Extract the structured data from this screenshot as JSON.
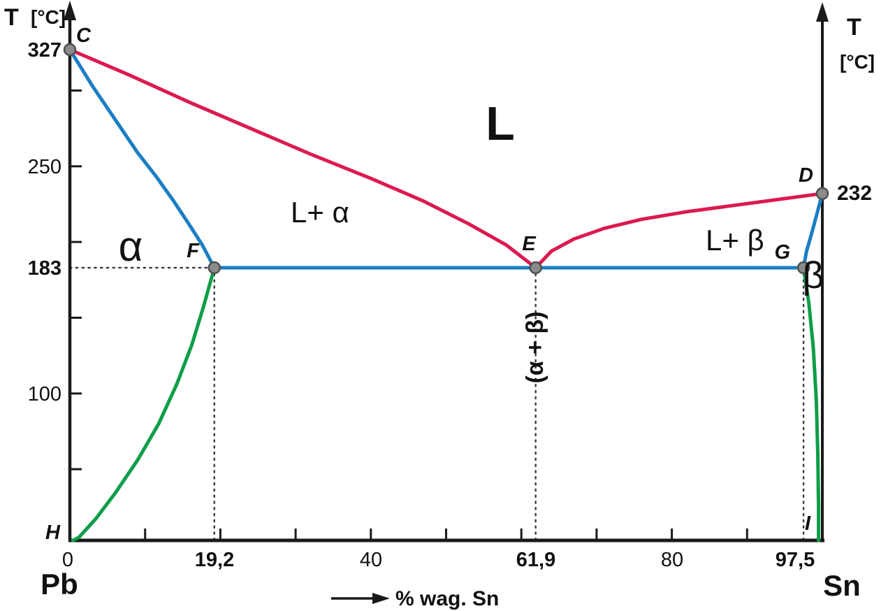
{
  "colors": {
    "liquidus": "#DC1A50",
    "solidus": "#1B7EC2",
    "solvus": "#0E9E48",
    "axis": "#1A1A1A",
    "guide": "#3A3A3A",
    "point_fill": "#8B8B8B",
    "point_stroke": "#4F4F4F",
    "background": "#FFFFFF"
  },
  "axis_titles": {
    "left_t": "T",
    "left_unit": "[°C]",
    "right_t": "T",
    "right_unit": "[°C]",
    "x_title": "% wag. Sn"
  },
  "endpoints": {
    "left": "Pb",
    "right": "Sn"
  },
  "y_labels": {
    "t327": "327",
    "t250": "250",
    "t183": "183",
    "t100": "100",
    "t232": "232"
  },
  "x_labels": {
    "p0": "0",
    "p19": "19,2",
    "p40": "40",
    "p61": "61,9",
    "p80": "80",
    "p97": "97,5"
  },
  "regions": {
    "liquid": "L",
    "liquid_alpha": "L+ α",
    "liquid_beta": "L+ β",
    "alpha": "α",
    "beta": "β",
    "alpha_beta": "(α + β)"
  },
  "point_labels": {
    "c": "C",
    "d": "D",
    "e": "E",
    "f": "F",
    "g": "G",
    "h": "H",
    "i": "I"
  },
  "chart_data": {
    "type": "line",
    "title": "Pb–Sn eutectic phase diagram",
    "xlabel": "% wag. Sn",
    "ylabel": "T [°C]",
    "xlim": [
      0,
      100
    ],
    "ylim": [
      0,
      360
    ],
    "grid": false,
    "x_tick_labels": [
      {
        "value": 0,
        "text": "0",
        "bold": false
      },
      {
        "value": 19.2,
        "text": "19,2",
        "bold": true
      },
      {
        "value": 40,
        "text": "40",
        "bold": false
      },
      {
        "value": 61.9,
        "text": "61,9",
        "bold": true
      },
      {
        "value": 80,
        "text": "80",
        "bold": false
      },
      {
        "value": 97.5,
        "text": "97,5",
        "bold": true
      }
    ],
    "y_tick_labels_left": [
      {
        "value": 327,
        "text": "327",
        "bold": true
      },
      {
        "value": 250,
        "text": "250",
        "bold": false
      },
      {
        "value": 183,
        "text": "183",
        "bold": true
      },
      {
        "value": 100,
        "text": "100",
        "bold": false
      }
    ],
    "y_tick_labels_right": [
      {
        "value": 232,
        "text": "232",
        "bold": true
      }
    ],
    "x_minor_ticks": [
      10,
      20,
      30,
      40,
      50,
      60,
      70,
      80,
      90
    ],
    "y_minor_ticks": [
      300,
      250,
      200,
      150,
      100,
      50
    ],
    "series": [
      {
        "name": "liquidus C–E",
        "color_key": "liquidus",
        "points": [
          [
            0,
            327
          ],
          [
            8,
            310
          ],
          [
            16,
            292
          ],
          [
            24,
            275
          ],
          [
            32,
            258
          ],
          [
            40,
            242
          ],
          [
            47,
            227
          ],
          [
            53,
            212
          ],
          [
            58,
            198
          ],
          [
            61.9,
            183
          ]
        ]
      },
      {
        "name": "liquidus E–D",
        "color_key": "liquidus",
        "points": [
          [
            61.9,
            183
          ],
          [
            64,
            194
          ],
          [
            67,
            202
          ],
          [
            71,
            209
          ],
          [
            76,
            215
          ],
          [
            82,
            220
          ],
          [
            88,
            224
          ],
          [
            94,
            228
          ],
          [
            100,
            232
          ]
        ]
      },
      {
        "name": "solidus C–F",
        "color_key": "solidus",
        "points": [
          [
            0,
            327
          ],
          [
            3,
            303
          ],
          [
            6,
            281
          ],
          [
            9,
            259
          ],
          [
            11.5,
            243
          ],
          [
            13.8,
            227
          ],
          [
            15.8,
            212
          ],
          [
            17.6,
            198
          ],
          [
            19.2,
            183
          ]
        ]
      },
      {
        "name": "solidus D–G",
        "color_key": "solidus",
        "points": [
          [
            100,
            232
          ],
          [
            99.3,
            219
          ],
          [
            98.6,
            206
          ],
          [
            97.9,
            194
          ],
          [
            97.5,
            183
          ]
        ]
      },
      {
        "name": "eutectic line F–E–G",
        "color_key": "solidus",
        "points": [
          [
            19.2,
            183
          ],
          [
            97.5,
            183
          ]
        ]
      },
      {
        "name": "solvus F–H",
        "color_key": "solvus",
        "points": [
          [
            19.2,
            183
          ],
          [
            17.8,
            158
          ],
          [
            16.2,
            132
          ],
          [
            14.2,
            106
          ],
          [
            11.8,
            80
          ],
          [
            9,
            56
          ],
          [
            6,
            34
          ],
          [
            3.4,
            17
          ],
          [
            1.2,
            5
          ],
          [
            0.4,
            3
          ]
        ]
      },
      {
        "name": "solvus G–I",
        "color_key": "solvus",
        "points": [
          [
            97.5,
            183
          ],
          [
            98.2,
            160
          ],
          [
            98.8,
            130
          ],
          [
            99.2,
            95
          ],
          [
            99.4,
            60
          ],
          [
            99.5,
            25
          ],
          [
            99.5,
            3
          ]
        ]
      }
    ],
    "points": [
      {
        "label": "C",
        "x": 0,
        "y": 327
      },
      {
        "label": "D",
        "x": 100,
        "y": 232
      },
      {
        "label": "E",
        "x": 61.9,
        "y": 183
      },
      {
        "label": "F",
        "x": 19.2,
        "y": 183
      },
      {
        "label": "G",
        "x": 97.5,
        "y": 183
      }
    ],
    "guides": [
      {
        "orient": "h",
        "t": 183,
        "p1": 0,
        "p2": 19.2
      },
      {
        "orient": "v",
        "p": 19.2,
        "t1": 183,
        "t2": 3
      },
      {
        "orient": "v",
        "p": 61.9,
        "t1": 183,
        "t2": 3
      },
      {
        "orient": "v",
        "p": 97.5,
        "t1": 183,
        "t2": 3
      }
    ],
    "annotations": [
      {
        "text": "L",
        "x": 57,
        "y": 280
      },
      {
        "text": "L+ α",
        "x": 32,
        "y": 213
      },
      {
        "text": "L+ β",
        "x": 87,
        "y": 196
      },
      {
        "text": "α",
        "x": 8,
        "y": 189
      },
      {
        "text": "β",
        "x": 99,
        "y": 172
      },
      {
        "text": "(α + β)",
        "x": 61.9,
        "y": 130,
        "rotation": -90
      }
    ]
  }
}
